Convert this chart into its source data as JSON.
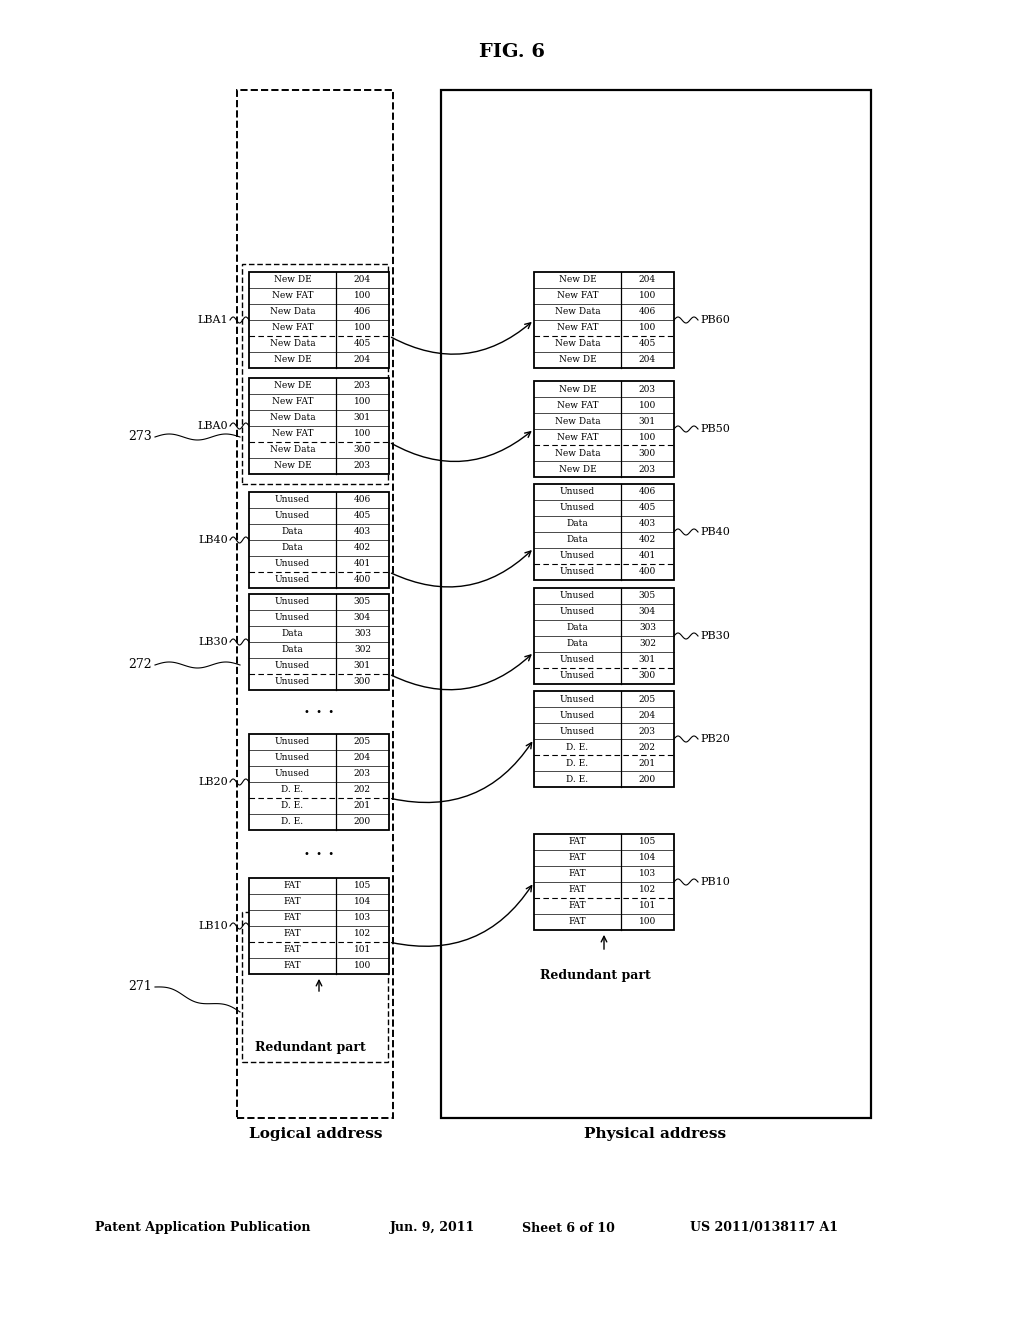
{
  "bg_color": "#ffffff",
  "fig_label": "FIG. 6",
  "logical_label": "Logical address",
  "physical_label": "Physical address",
  "redundant_part_left": "Redundant part",
  "redundant_part_right": "Redundant part",
  "header_text": "Patent Application Publication",
  "header_date": "Jun. 9, 2011",
  "header_sheet": "Sheet 6 of 10",
  "header_patent": "US 2011/0138117 A1",
  "left_blocks": [
    {
      "label": "LB10",
      "rows": [
        [
          "FAT",
          "100"
        ],
        [
          "FAT",
          "101"
        ],
        [
          "FAT",
          "102"
        ],
        [
          "FAT",
          "103"
        ],
        [
          "FAT",
          "104"
        ],
        [
          "FAT",
          "105"
        ]
      ],
      "dashed_after": 2
    },
    {
      "label": "LB20",
      "rows": [
        [
          "D. E.",
          "200"
        ],
        [
          "D. E.",
          "201"
        ],
        [
          "D. E.",
          "202"
        ],
        [
          "Unused",
          "203"
        ],
        [
          "Unused",
          "204"
        ],
        [
          "Unused",
          "205"
        ]
      ],
      "dashed_after": 2
    },
    {
      "label": "LB30",
      "rows": [
        [
          "Unused",
          "300"
        ],
        [
          "Unused",
          "301"
        ],
        [
          "Data",
          "302"
        ],
        [
          "Data",
          "303"
        ],
        [
          "Unused",
          "304"
        ],
        [
          "Unused",
          "305"
        ]
      ],
      "dashed_after": 1
    },
    {
      "label": "LB40",
      "rows": [
        [
          "Unused",
          "400"
        ],
        [
          "Unused",
          "401"
        ],
        [
          "Data",
          "402"
        ],
        [
          "Data",
          "403"
        ],
        [
          "Unused",
          "405"
        ],
        [
          "Unused",
          "406"
        ]
      ],
      "dashed_after": 1
    },
    {
      "label": "LBA0",
      "rows": [
        [
          "New DE",
          "203"
        ],
        [
          "New Data",
          "300"
        ],
        [
          "New FAT",
          "100"
        ],
        [
          "New Data",
          "301"
        ],
        [
          "New FAT",
          "100"
        ],
        [
          "New DE",
          "203"
        ]
      ],
      "dashed_after": 2
    },
    {
      "label": "LBA1",
      "rows": [
        [
          "New DE",
          "204"
        ],
        [
          "New Data",
          "405"
        ],
        [
          "New FAT",
          "100"
        ],
        [
          "New Data",
          "406"
        ],
        [
          "New FAT",
          "100"
        ],
        [
          "New DE",
          "204"
        ]
      ],
      "dashed_after": 2
    }
  ],
  "right_blocks": [
    {
      "label": "PB10",
      "rows": [
        [
          "FAT",
          "100"
        ],
        [
          "FAT",
          "101"
        ],
        [
          "FAT",
          "102"
        ],
        [
          "FAT",
          "103"
        ],
        [
          "FAT",
          "104"
        ],
        [
          "FAT",
          "105"
        ]
      ],
      "dashed_after": 2
    },
    {
      "label": "PB20",
      "rows": [
        [
          "D. E.",
          "200"
        ],
        [
          "D. E.",
          "201"
        ],
        [
          "D. E.",
          "202"
        ],
        [
          "Unused",
          "203"
        ],
        [
          "Unused",
          "204"
        ],
        [
          "Unused",
          "205"
        ]
      ],
      "dashed_after": 2
    },
    {
      "label": "PB30",
      "rows": [
        [
          "Unused",
          "300"
        ],
        [
          "Unused",
          "301"
        ],
        [
          "Data",
          "302"
        ],
        [
          "Data",
          "303"
        ],
        [
          "Unused",
          "304"
        ],
        [
          "Unused",
          "305"
        ]
      ],
      "dashed_after": 1
    },
    {
      "label": "PB40",
      "rows": [
        [
          "Unused",
          "400"
        ],
        [
          "Unused",
          "401"
        ],
        [
          "Data",
          "402"
        ],
        [
          "Data",
          "403"
        ],
        [
          "Unused",
          "405"
        ],
        [
          "Unused",
          "406"
        ]
      ],
      "dashed_after": 1
    },
    {
      "label": "PB50",
      "rows": [
        [
          "New DE",
          "203"
        ],
        [
          "New Data",
          "300"
        ],
        [
          "New FAT",
          "100"
        ],
        [
          "New Data",
          "301"
        ],
        [
          "New FAT",
          "100"
        ],
        [
          "New DE",
          "203"
        ]
      ],
      "dashed_after": 2
    },
    {
      "label": "PB60",
      "rows": [
        [
          "New DE",
          "204"
        ],
        [
          "New Data",
          "405"
        ],
        [
          "New FAT",
          "100"
        ],
        [
          "New Data",
          "406"
        ],
        [
          "New FAT",
          "100"
        ],
        [
          "New DE",
          "204"
        ]
      ],
      "dashed_after": 2
    }
  ],
  "arrow_rows": [
    3,
    3,
    3,
    3,
    3,
    3
  ]
}
